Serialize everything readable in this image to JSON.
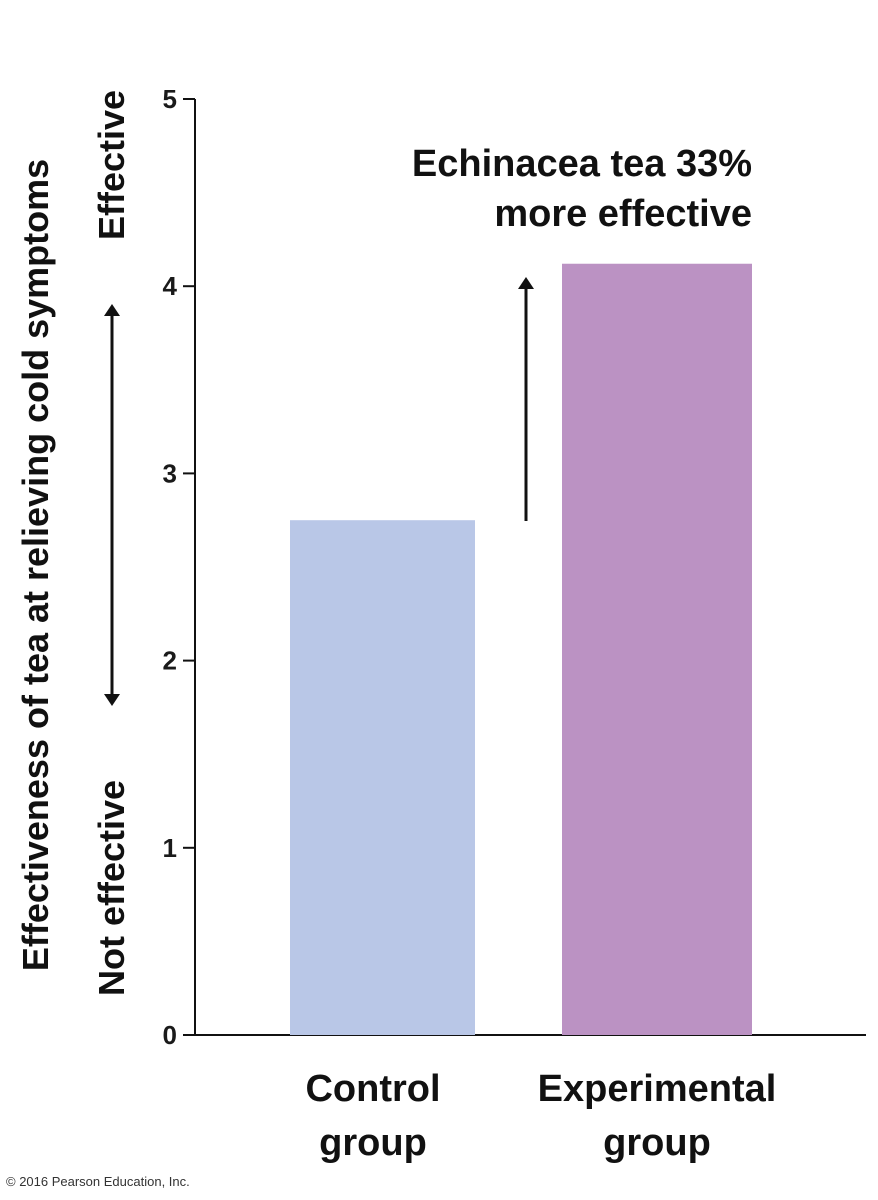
{
  "chart_data": {
    "type": "bar",
    "categories": [
      "Control group",
      "Experimental group"
    ],
    "category_lines": [
      [
        "Control",
        "group"
      ],
      [
        "Experimental",
        "group"
      ]
    ],
    "values": [
      2.75,
      4.12
    ],
    "colors": [
      "#b9c7e7",
      "#bb92c3"
    ],
    "ylim": [
      0,
      5
    ],
    "yticks": [
      0,
      1,
      2,
      3,
      4,
      5
    ],
    "ylabel": "Effectiveness of tea at relieving cold symptoms",
    "scale_low_label": "Not effective",
    "scale_high_label": "Effective",
    "annotation_lines": [
      "Echinacea tea 33%",
      "more effective"
    ],
    "grid": false
  },
  "footer": {
    "copyright": "© 2016 Pearson Education, Inc."
  }
}
